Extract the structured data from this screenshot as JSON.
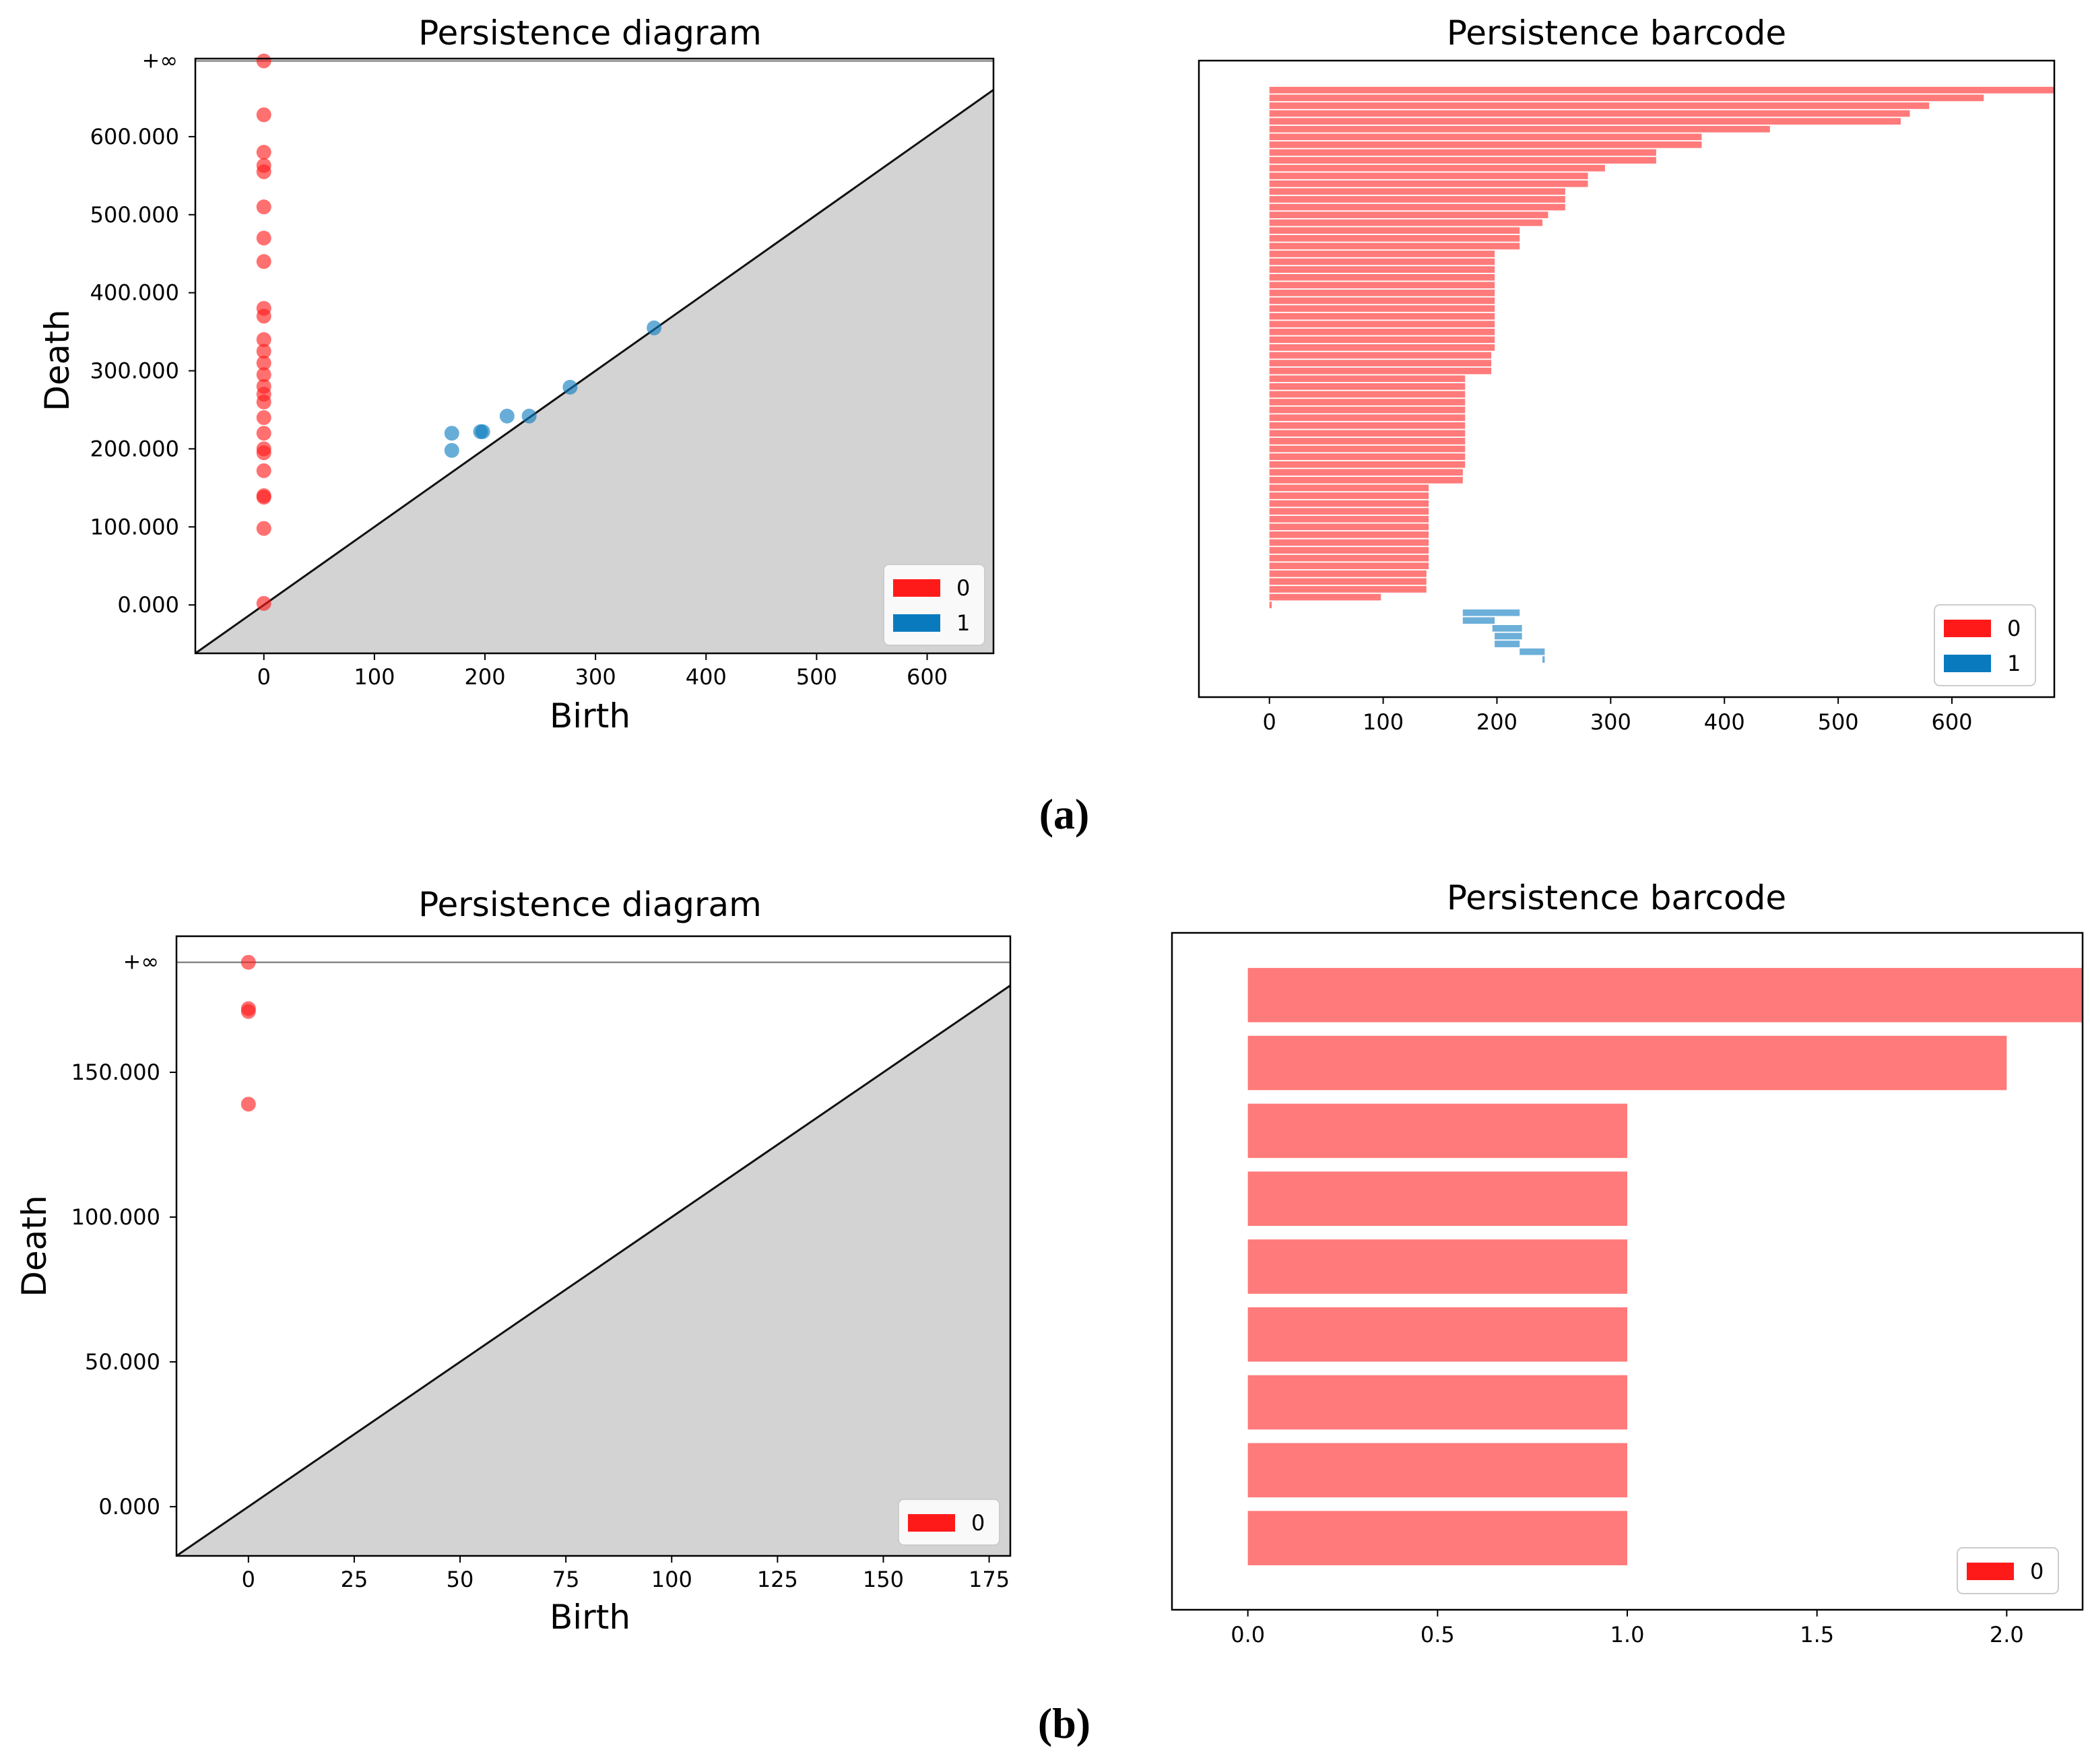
{
  "captions": [
    "(a)",
    "(b)"
  ],
  "colors": {
    "dim0": "#ff1a1a",
    "dim1": "#0a7abf",
    "diag_fill": "#d3d3d3"
  },
  "chart_data": [
    {
      "type": "scatter",
      "title": "Persistence diagram",
      "xlabel": "Birth",
      "ylabel": "Death",
      "xlim": [
        -62,
        660
      ],
      "ylim": [
        -62,
        700
      ],
      "inf_label": "+∞",
      "inf_value": 697,
      "xticks": [
        0,
        100,
        200,
        300,
        400,
        500,
        600
      ],
      "xtick_labels": [
        "0",
        "100",
        "200",
        "300",
        "400",
        "500",
        "600"
      ],
      "yticks": [
        0,
        100,
        200,
        300,
        400,
        500,
        600
      ],
      "ytick_labels": [
        "0.000",
        "100.000",
        "200.000",
        "300.000",
        "400.000",
        "500.000",
        "600.000"
      ],
      "legend": [
        "0",
        "1"
      ],
      "series": [
        {
          "name": "0",
          "points": [
            [
              0,
              697
            ],
            [
              0,
              628
            ],
            [
              0,
              580
            ],
            [
              0,
              563
            ],
            [
              0,
              555
            ],
            [
              0,
              510
            ],
            [
              0,
              470
            ],
            [
              0,
              440
            ],
            [
              0,
              380
            ],
            [
              0,
              370
            ],
            [
              0,
              340
            ],
            [
              0,
              325
            ],
            [
              0,
              310
            ],
            [
              0,
              295
            ],
            [
              0,
              280
            ],
            [
              0,
              270
            ],
            [
              0,
              260
            ],
            [
              0,
              240
            ],
            [
              0,
              220
            ],
            [
              0,
              200
            ],
            [
              0,
              195
            ],
            [
              0,
              172
            ],
            [
              0,
              140
            ],
            [
              0,
              138
            ],
            [
              0,
              98
            ],
            [
              0,
              2
            ]
          ]
        },
        {
          "name": "1",
          "points": [
            [
              170,
              220
            ],
            [
              170,
              198
            ],
            [
              196,
              222
            ],
            [
              198,
              222
            ],
            [
              220,
              242
            ],
            [
              240,
              242
            ],
            [
              277,
              279
            ],
            [
              353,
              355
            ]
          ]
        }
      ]
    },
    {
      "type": "barcode",
      "title": "Persistence barcode",
      "xlim": [
        -62,
        690
      ],
      "xticks": [
        0,
        100,
        200,
        300,
        400,
        500,
        600
      ],
      "xtick_labels": [
        "0",
        "100",
        "200",
        "300",
        "400",
        "500",
        "600"
      ],
      "legend": [
        "0",
        "1"
      ],
      "series": [
        {
          "name": "0",
          "bars": [
            [
              0,
              690
            ],
            [
              0,
              628
            ],
            [
              0,
              580
            ],
            [
              0,
              563
            ],
            [
              0,
              555
            ],
            [
              0,
              440
            ],
            [
              0,
              380
            ],
            [
              0,
              380
            ],
            [
              0,
              340
            ],
            [
              0,
              340
            ],
            [
              0,
              295
            ],
            [
              0,
              280
            ],
            [
              0,
              280
            ],
            [
              0,
              260
            ],
            [
              0,
              260
            ],
            [
              0,
              260
            ],
            [
              0,
              245
            ],
            [
              0,
              240
            ],
            [
              0,
              220
            ],
            [
              0,
              220
            ],
            [
              0,
              220
            ],
            [
              0,
              198
            ],
            [
              0,
              198
            ],
            [
              0,
              198
            ],
            [
              0,
              198
            ],
            [
              0,
              198
            ],
            [
              0,
              198
            ],
            [
              0,
              198
            ],
            [
              0,
              198
            ],
            [
              0,
              198
            ],
            [
              0,
              198
            ],
            [
              0,
              198
            ],
            [
              0,
              198
            ],
            [
              0,
              198
            ],
            [
              0,
              195
            ],
            [
              0,
              195
            ],
            [
              0,
              195
            ],
            [
              0,
              172
            ],
            [
              0,
              172
            ],
            [
              0,
              172
            ],
            [
              0,
              172
            ],
            [
              0,
              172
            ],
            [
              0,
              172
            ],
            [
              0,
              172
            ],
            [
              0,
              172
            ],
            [
              0,
              172
            ],
            [
              0,
              172
            ],
            [
              0,
              172
            ],
            [
              0,
              172
            ],
            [
              0,
              170
            ],
            [
              0,
              170
            ],
            [
              0,
              140
            ],
            [
              0,
              140
            ],
            [
              0,
              140
            ],
            [
              0,
              140
            ],
            [
              0,
              140
            ],
            [
              0,
              140
            ],
            [
              0,
              140
            ],
            [
              0,
              140
            ],
            [
              0,
              140
            ],
            [
              0,
              140
            ],
            [
              0,
              140
            ],
            [
              0,
              138
            ],
            [
              0,
              138
            ],
            [
              0,
              138
            ],
            [
              0,
              98
            ],
            [
              0,
              2
            ]
          ]
        },
        {
          "name": "1",
          "bars": [
            [
              170,
              220
            ],
            [
              170,
              198
            ],
            [
              196,
              222
            ],
            [
              198,
              222
            ],
            [
              198,
              220
            ],
            [
              220,
              242
            ],
            [
              240,
              242
            ]
          ]
        }
      ]
    },
    {
      "type": "scatter",
      "title": "Persistence diagram",
      "xlabel": "Birth",
      "ylabel": "Death",
      "xlim": [
        -17,
        180
      ],
      "ylim": [
        -17,
        197
      ],
      "inf_label": "+∞",
      "inf_value": 188,
      "xticks": [
        0,
        25,
        50,
        75,
        100,
        125,
        150,
        175
      ],
      "xtick_labels": [
        "0",
        "25",
        "50",
        "75",
        "100",
        "125",
        "150",
        "175"
      ],
      "yticks": [
        0,
        50,
        100,
        150
      ],
      "ytick_labels": [
        "0.000",
        "50.000",
        "100.000",
        "150.000"
      ],
      "legend": [
        "0"
      ],
      "series": [
        {
          "name": "0",
          "points": [
            [
              0,
              188
            ],
            [
              0,
              172
            ],
            [
              0,
              171
            ],
            [
              0,
              139
            ]
          ]
        }
      ]
    },
    {
      "type": "barcode",
      "title": "Persistence barcode",
      "xlim": [
        -0.2,
        2.2
      ],
      "xticks": [
        0.0,
        0.5,
        1.0,
        1.5,
        2.0
      ],
      "xtick_labels": [
        "0.0",
        "0.5",
        "1.0",
        "1.5",
        "2.0"
      ],
      "legend": [
        "0"
      ],
      "series": [
        {
          "name": "0",
          "bars": [
            [
              0,
              2.2
            ],
            [
              0,
              2.0
            ],
            [
              0,
              1.0
            ],
            [
              0,
              1.0
            ],
            [
              0,
              1.0
            ],
            [
              0,
              1.0
            ],
            [
              0,
              1.0
            ],
            [
              0,
              1.0
            ],
            [
              0,
              1.0
            ]
          ]
        }
      ]
    }
  ]
}
